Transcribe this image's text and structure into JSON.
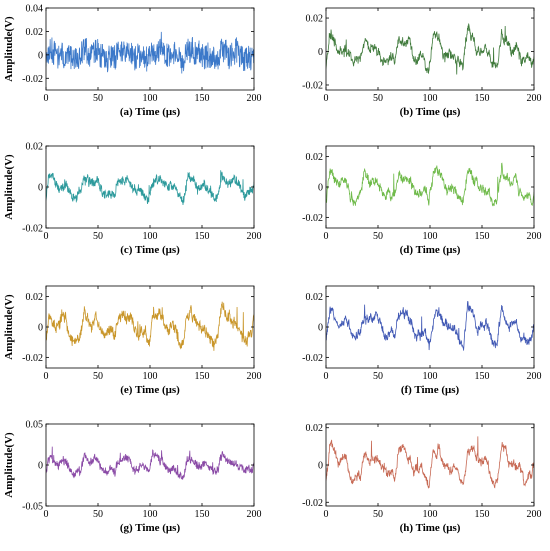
{
  "chart_data": [
    {
      "panel": "a",
      "type": "line",
      "xlabel": "(a) Time (μs)",
      "ylabel": "Amplitude(V)",
      "xlim": [
        0,
        200
      ],
      "ylim": [
        -0.03,
        0.04
      ],
      "xticks": [
        0,
        50,
        100,
        150,
        200
      ],
      "yticks": [
        0.04,
        0.02,
        0,
        -0.02
      ],
      "color": "#3b78c9",
      "x_range": [
        0,
        200
      ],
      "noise": 0.011,
      "amplitude": 0.005,
      "seed": 11
    },
    {
      "panel": "b",
      "type": "line",
      "xlabel": "(b) Time (μs)",
      "ylabel": "",
      "xlim": [
        0,
        200
      ],
      "ylim": [
        -0.023,
        0.026
      ],
      "xticks": [
        0,
        50,
        100,
        150,
        200
      ],
      "yticks": [
        0.02,
        0,
        -0.02
      ],
      "color": "#3f7a3b",
      "x_range": [
        0,
        200
      ],
      "noise": 0.002,
      "amplitude": 0.009,
      "seed": 21
    },
    {
      "panel": "c",
      "type": "line",
      "xlabel": "(c) Time (μs)",
      "ylabel": "Amplitude(V)",
      "xlim": [
        0,
        200
      ],
      "ylim": [
        -0.02,
        0.02
      ],
      "xticks": [
        0,
        50,
        100,
        150,
        200
      ],
      "yticks": [
        0.02,
        0,
        -0.02
      ],
      "color": "#2d9a9c",
      "x_range": [
        0,
        200
      ],
      "noise": 0.002,
      "amplitude": 0.005,
      "seed": 31
    },
    {
      "panel": "d",
      "type": "line",
      "xlabel": "(d) Time (μs)",
      "ylabel": "",
      "xlim": [
        0,
        200
      ],
      "ylim": [
        -0.027,
        0.027
      ],
      "xticks": [
        0,
        50,
        100,
        150,
        200
      ],
      "yticks": [
        0.02,
        0,
        -0.02
      ],
      "color": "#6fba4a",
      "x_range": [
        0,
        200
      ],
      "noise": 0.002,
      "amplitude": 0.01,
      "seed": 41
    },
    {
      "panel": "e",
      "type": "line",
      "xlabel": "(e) Time (μs)",
      "ylabel": "Amplitude(V)",
      "xlim": [
        0,
        200
      ],
      "ylim": [
        -0.027,
        0.027
      ],
      "xticks": [
        0,
        50,
        100,
        150,
        200
      ],
      "yticks": [
        0.02,
        0,
        -0.02
      ],
      "color": "#c9962a",
      "x_range": [
        0,
        200
      ],
      "noise": 0.003,
      "amplitude": 0.01,
      "seed": 51
    },
    {
      "panel": "f",
      "type": "line",
      "xlabel": "(f) Time (μs)",
      "ylabel": "",
      "xlim": [
        0,
        200
      ],
      "ylim": [
        -0.027,
        0.027
      ],
      "xticks": [
        0,
        50,
        100,
        150,
        200
      ],
      "yticks": [
        0.02,
        0,
        -0.02
      ],
      "color": "#4058b4",
      "x_range": [
        0,
        200
      ],
      "noise": 0.002,
      "amplitude": 0.01,
      "seed": 61
    },
    {
      "panel": "g",
      "type": "line",
      "xlabel": "(g) Time (μs)",
      "ylabel": "Amplitude(V)",
      "xlim": [
        0,
        200
      ],
      "ylim": [
        -0.05,
        0.05
      ],
      "xticks": [
        0,
        50,
        100,
        150,
        200
      ],
      "yticks": [
        0.05,
        0,
        -0.05
      ],
      "color": "#8a4aa6",
      "x_range": [
        0,
        200
      ],
      "noise": 0.004,
      "amplitude": 0.012,
      "seed": 71
    },
    {
      "panel": "h",
      "type": "line",
      "xlabel": "(h) Time (μs)",
      "ylabel": "",
      "xlim": [
        0,
        200
      ],
      "ylim": [
        -0.022,
        0.022
      ],
      "xticks": [
        0,
        50,
        100,
        150,
        200
      ],
      "yticks": [
        0.02,
        0,
        -0.02
      ],
      "color": "#c76a55",
      "x_range": [
        0,
        200
      ],
      "noise": 0.0015,
      "amplitude": 0.009,
      "seed": 81
    }
  ]
}
